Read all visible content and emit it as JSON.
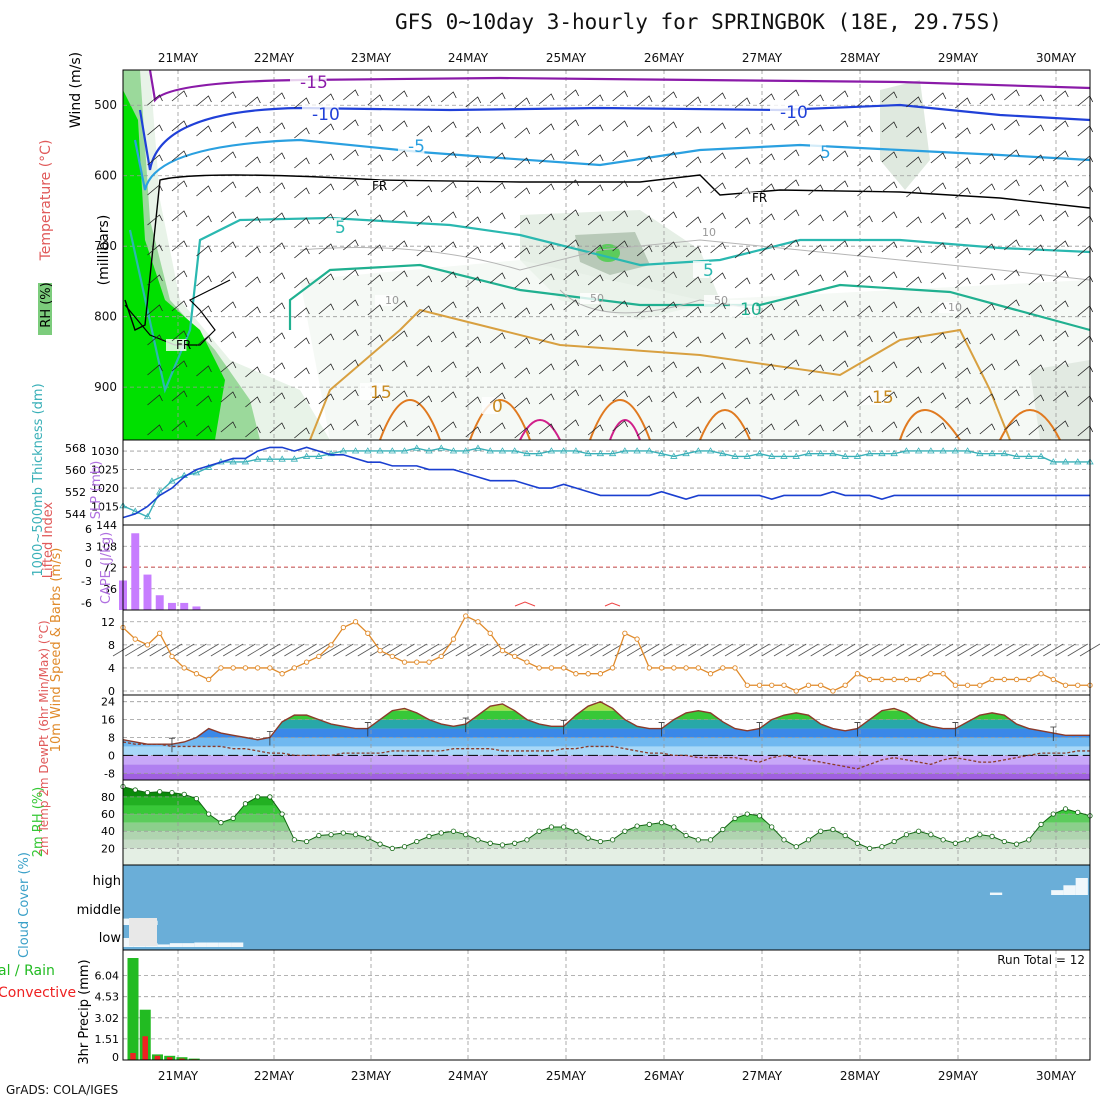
{
  "title": "GFS 0~10day 3-hourly for SPRINGBOK (18E, 29.75S)",
  "credit": "GrADS: COLA/IGES",
  "date_labels": [
    "21MAY",
    "22MAY",
    "23MAY",
    "24MAY",
    "25MAY",
    "26MAY",
    "27MAY",
    "28MAY",
    "29MAY",
    "30MAY"
  ],
  "colors": {
    "grid": "#9a9a9a",
    "slp": "#1a3fd0",
    "thickness": "#3ab0b8",
    "cape": "#c77dff",
    "wind10m": "#e08a2a",
    "rh": "#36c836",
    "cloud": "#6aaed8",
    "precip_total": "#22bb22",
    "precip_conv": "#ee2222"
  },
  "chart_data": [
    {
      "panel": "upper_air",
      "type": "heatmap",
      "ylabel_parts": [
        "RH (%)",
        "Temperature (°C)",
        "Wind (m/s)"
      ],
      "ylabel_units": "(millibars)",
      "y_ticks": [
        500,
        600,
        700,
        800,
        900
      ],
      "contour_labels": [
        "-15",
        "-10",
        "-10",
        "-5",
        "5",
        "FR",
        "FR",
        "FR",
        "5",
        "5",
        "10",
        "15",
        "15",
        "0",
        "10",
        "10",
        "10",
        "50",
        "50"
      ]
    },
    {
      "panel": "slp_thickness",
      "type": "line",
      "ylabel": "SLP (mb)",
      "ylabel2": "1000~500mb Thickness (dm)",
      "y_ticks": [
        1015,
        1020,
        1025,
        1030
      ],
      "y2_ticks": [
        544,
        552,
        560,
        568
      ],
      "series": [
        {
          "name": "SLP (mb)",
          "values": [
            1012,
            1013,
            1015,
            1018,
            1020,
            1023,
            1025,
            1026,
            1027,
            1028,
            1028,
            1030,
            1031,
            1031,
            1030,
            1031,
            1030,
            1029,
            1029,
            1028,
            1027,
            1027,
            1026,
            1026,
            1026,
            1025,
            1025,
            1025,
            1024,
            1023,
            1022,
            1022,
            1022,
            1021,
            1020,
            1020,
            1021,
            1020,
            1019,
            1018,
            1018,
            1018,
            1018,
            1018,
            1019,
            1018,
            1017,
            1018,
            1018,
            1018,
            1018,
            1018,
            1018,
            1017,
            1018,
            1018,
            1018,
            1018,
            1019,
            1018,
            1018,
            1018,
            1017,
            1018,
            1018,
            1018,
            1018,
            1018,
            1018,
            1018,
            1018,
            1018,
            1018,
            1018,
            1018,
            1018,
            1018,
            1018,
            1018,
            1018
          ]
        },
        {
          "name": "1000~500mb Thickness (dm)",
          "values": [
            547,
            545,
            543,
            552,
            556,
            558,
            559,
            561,
            563,
            563,
            563,
            564,
            564,
            564,
            564,
            565,
            565,
            566,
            567,
            567,
            567,
            567,
            567,
            567,
            568,
            567,
            568,
            567,
            567,
            568,
            567,
            567,
            567,
            566,
            566,
            567,
            567,
            567,
            566,
            566,
            566,
            567,
            567,
            567,
            566,
            565,
            566,
            567,
            567,
            566,
            565,
            565,
            566,
            565,
            565,
            565,
            566,
            566,
            566,
            565,
            565,
            566,
            566,
            566,
            567,
            567,
            567,
            567,
            567,
            567,
            566,
            566,
            566,
            565,
            565,
            565,
            563,
            563,
            563,
            563
          ]
        }
      ]
    },
    {
      "panel": "stability",
      "type": "bar",
      "ylabel": "CAPE (J/kg)",
      "ylabel2": "Lifted Index",
      "y_ticks": [
        36,
        72,
        108,
        144
      ],
      "y2_ticks": [
        "6",
        "3",
        "0",
        "-3",
        "-6"
      ],
      "series": [
        {
          "name": "CAPE (J/kg)",
          "values": [
            50,
            130,
            60,
            25,
            12,
            12,
            6,
            0,
            0,
            0,
            0,
            0,
            0,
            0,
            0,
            0,
            0,
            0,
            0,
            0,
            0,
            0,
            0,
            0,
            0,
            0,
            0,
            0,
            0,
            0,
            0,
            0,
            0,
            0,
            0,
            0,
            0,
            0,
            0,
            0,
            0,
            0,
            0,
            0,
            0,
            0,
            0,
            0,
            0,
            0,
            0,
            0,
            0,
            0,
            0,
            0,
            0,
            0,
            0,
            0,
            0,
            0,
            0,
            0,
            0,
            0,
            0,
            0,
            0,
            0,
            0,
            0,
            0,
            0,
            0,
            0,
            0,
            0,
            0,
            0
          ]
        }
      ]
    },
    {
      "panel": "wind10m",
      "type": "line",
      "ylabel": "10m Wind Speed & Barbs (m/s)",
      "y_ticks": [
        0,
        4,
        8,
        12
      ],
      "series": [
        {
          "name": "10m Wind Speed",
          "values": [
            11,
            9,
            8,
            10,
            6,
            4,
            3,
            2,
            4,
            4,
            4,
            4,
            4,
            3,
            4,
            5,
            6,
            8,
            11,
            12,
            10,
            7,
            6,
            5,
            5,
            5,
            6,
            9,
            13,
            12,
            10,
            7,
            6,
            5,
            4,
            4,
            4,
            3,
            3,
            3,
            4,
            10,
            9,
            4,
            4,
            4,
            4,
            4,
            3,
            4,
            4,
            1,
            1,
            1,
            1,
            0,
            1,
            1,
            0,
            1,
            3,
            2,
            2,
            2,
            2,
            2,
            3,
            3,
            1,
            1,
            1,
            2,
            2,
            2,
            2,
            3,
            2,
            1,
            1,
            1
          ]
        }
      ]
    },
    {
      "panel": "temperature",
      "type": "area",
      "ylabel": "2m Temp 2m DewPt (6hr Min/Max) (°C)",
      "y_ticks": [
        -8,
        0,
        8,
        16,
        24
      ],
      "series": [
        {
          "name": "2m Temp",
          "values": [
            7,
            6,
            5,
            5,
            5,
            6,
            8,
            12,
            10,
            9,
            8,
            7,
            8,
            15,
            18,
            18,
            16,
            14,
            13,
            12,
            12,
            16,
            20,
            21,
            19,
            16,
            14,
            13,
            14,
            18,
            22,
            23,
            20,
            16,
            14,
            13,
            13,
            18,
            22,
            24,
            21,
            16,
            13,
            12,
            12,
            16,
            19,
            20,
            19,
            15,
            12,
            11,
            12,
            16,
            18,
            19,
            18,
            14,
            12,
            11,
            12,
            16,
            20,
            21,
            19,
            15,
            13,
            12,
            12,
            15,
            18,
            19,
            18,
            14,
            12,
            11,
            10,
            9,
            9,
            9
          ]
        },
        {
          "name": "2m DewPt",
          "values": [
            6,
            5,
            5,
            5,
            4,
            4,
            4,
            4,
            4,
            3,
            3,
            2,
            1,
            1,
            0,
            0,
            0,
            0,
            1,
            1,
            1,
            1,
            2,
            2,
            2,
            2,
            2,
            3,
            3,
            3,
            3,
            2,
            2,
            2,
            2,
            2,
            3,
            3,
            4,
            4,
            4,
            3,
            2,
            1,
            1,
            0,
            0,
            -1,
            -1,
            -1,
            -1,
            -2,
            -3,
            -1,
            0,
            -1,
            -2,
            -3,
            -4,
            -5,
            -6,
            -4,
            -2,
            -1,
            -2,
            -3,
            -4,
            -2,
            -1,
            -2,
            -3,
            -3,
            -2,
            -1,
            0,
            1,
            1,
            1,
            2,
            2
          ]
        }
      ]
    },
    {
      "panel": "rh2m",
      "type": "area",
      "ylabel": "2m RH (%)",
      "y_ticks": [
        20,
        40,
        60,
        80
      ],
      "series": [
        {
          "name": "2m RH",
          "values": [
            92,
            88,
            85,
            86,
            85,
            83,
            78,
            60,
            50,
            55,
            72,
            80,
            80,
            60,
            30,
            28,
            35,
            36,
            38,
            36,
            32,
            25,
            20,
            22,
            28,
            34,
            38,
            40,
            36,
            30,
            26,
            24,
            26,
            30,
            40,
            45,
            45,
            40,
            32,
            28,
            30,
            40,
            46,
            48,
            50,
            45,
            35,
            30,
            30,
            42,
            55,
            60,
            58,
            45,
            30,
            22,
            30,
            40,
            42,
            35,
            26,
            20,
            22,
            28,
            36,
            40,
            36,
            30,
            26,
            30,
            36,
            34,
            28,
            25,
            30,
            48,
            60,
            66,
            62,
            58
          ]
        }
      ]
    },
    {
      "panel": "cloud",
      "type": "bar",
      "ylabel": "Cloud Cover (%)",
      "level_labels": [
        "high",
        "middle",
        "low"
      ],
      "series": [
        {
          "name": "low",
          "values": [
            70,
            40,
            30,
            20,
            30,
            30,
            35,
            35,
            35,
            35,
            0,
            0,
            0,
            0,
            0,
            0,
            0,
            0,
            0,
            0,
            0,
            0,
            0,
            0,
            0,
            0,
            0,
            0,
            0,
            0,
            0,
            0,
            0,
            0,
            0,
            0,
            0,
            0,
            0,
            0,
            0,
            0,
            0,
            0,
            0,
            0,
            0,
            0,
            0,
            0,
            0,
            0,
            0,
            0,
            0,
            0,
            0,
            0,
            0,
            0,
            0,
            0,
            0,
            0,
            0,
            0,
            0,
            0,
            0,
            0,
            0,
            0,
            0,
            0,
            0,
            0,
            0,
            0,
            0,
            0
          ]
        },
        {
          "name": "middle",
          "values": [
            30,
            20,
            20,
            0,
            0,
            0,
            0,
            0,
            0,
            0,
            0,
            0,
            0,
            0,
            0,
            0,
            0,
            0,
            0,
            0,
            0,
            0,
            0,
            0,
            0,
            0,
            0,
            0,
            0,
            0,
            0,
            0,
            0,
            0,
            0,
            0,
            0,
            0,
            0,
            0,
            0,
            0,
            0,
            0,
            0,
            0,
            0,
            0,
            0,
            0,
            0,
            0,
            0,
            0,
            0,
            0,
            0,
            0,
            0,
            0,
            0,
            0,
            0,
            0,
            0,
            0,
            0,
            0,
            0,
            0,
            0,
            0,
            0,
            0,
            0,
            0,
            0,
            0,
            0,
            0
          ]
        },
        {
          "name": "high",
          "values": [
            0,
            0,
            0,
            0,
            0,
            0,
            0,
            0,
            0,
            0,
            0,
            0,
            0,
            0,
            0,
            0,
            0,
            0,
            0,
            0,
            0,
            0,
            0,
            0,
            0,
            0,
            0,
            0,
            0,
            0,
            0,
            0,
            0,
            0,
            0,
            0,
            0,
            0,
            0,
            0,
            0,
            0,
            0,
            0,
            0,
            0,
            0,
            0,
            0,
            0,
            0,
            0,
            0,
            0,
            0,
            0,
            0,
            0,
            0,
            0,
            0,
            0,
            0,
            0,
            0,
            0,
            0,
            0,
            0,
            0,
            0,
            10,
            0,
            0,
            0,
            0,
            20,
            40,
            70,
            0
          ]
        }
      ]
    },
    {
      "panel": "precip",
      "type": "bar",
      "ylabel": "3hr Precip (mm)",
      "ylabel2": "Total / Rain / Convective",
      "y_ticks": [
        1.51,
        3.02,
        4.53,
        6.04
      ],
      "annotation": "Run Total = 12",
      "series": [
        {
          "name": "Total",
          "values": [
            7.3,
            3.6,
            0.4,
            0.3,
            0.2,
            0.1,
            0,
            0,
            0,
            0,
            0,
            0,
            0,
            0,
            0,
            0,
            0,
            0,
            0,
            0,
            0,
            0,
            0,
            0,
            0,
            0,
            0,
            0,
            0,
            0,
            0,
            0,
            0,
            0,
            0,
            0,
            0,
            0,
            0,
            0,
            0,
            0,
            0,
            0,
            0,
            0,
            0,
            0,
            0,
            0,
            0,
            0,
            0,
            0,
            0,
            0,
            0,
            0,
            0,
            0,
            0,
            0,
            0,
            0,
            0,
            0,
            0,
            0,
            0,
            0,
            0,
            0,
            0,
            0,
            0,
            0,
            0,
            0,
            0,
            0
          ]
        },
        {
          "name": "Convective",
          "values": [
            0.5,
            1.7,
            0.3,
            0.2,
            0.1,
            0.05,
            0,
            0,
            0,
            0,
            0,
            0,
            0,
            0,
            0,
            0,
            0,
            0,
            0,
            0,
            0,
            0,
            0,
            0,
            0,
            0,
            0,
            0,
            0,
            0,
            0,
            0,
            0,
            0,
            0,
            0,
            0,
            0,
            0,
            0,
            0,
            0,
            0,
            0,
            0,
            0,
            0,
            0,
            0,
            0,
            0,
            0,
            0,
            0,
            0,
            0,
            0,
            0,
            0,
            0,
            0,
            0,
            0,
            0,
            0,
            0,
            0,
            0,
            0,
            0,
            0,
            0,
            0,
            0,
            0,
            0,
            0,
            0,
            0,
            0
          ]
        }
      ]
    }
  ]
}
